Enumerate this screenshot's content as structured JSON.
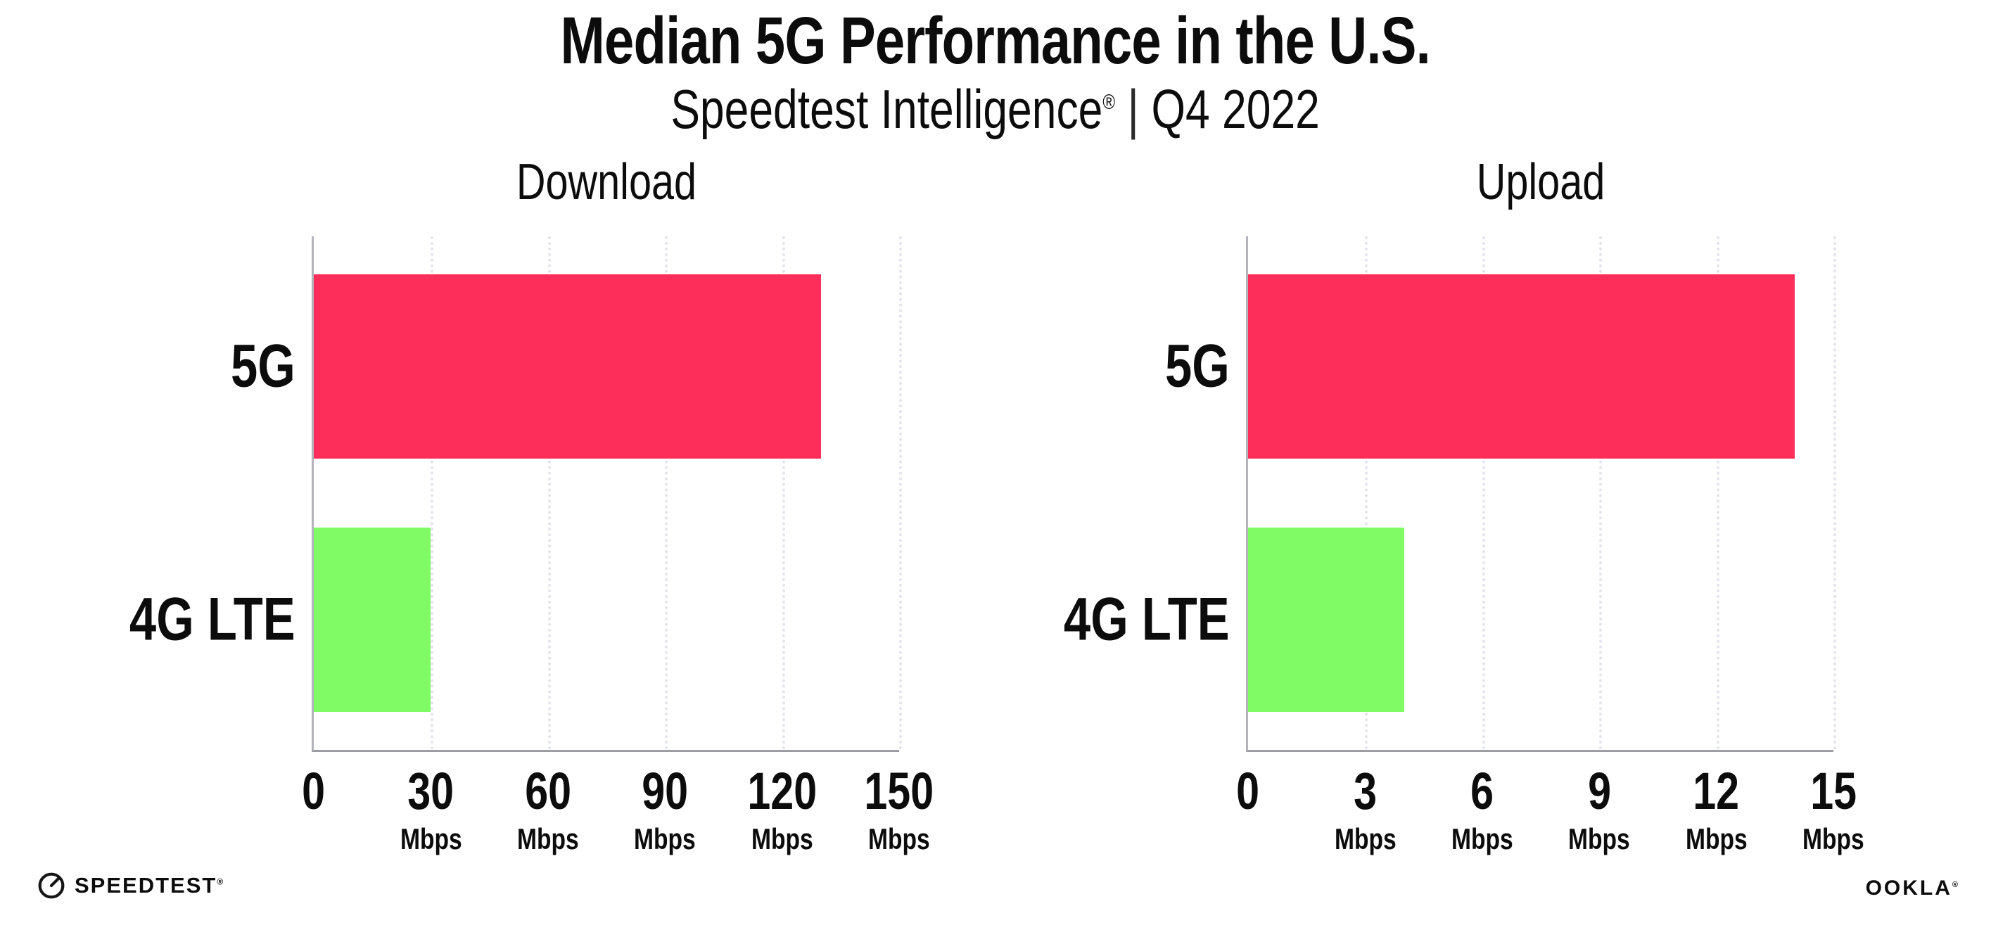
{
  "header": {
    "title": "Median 5G Performance in the U.S.",
    "subtitle_brand": "Speedtest Intelligence",
    "subtitle_reg": "®",
    "subtitle_sep": "|",
    "subtitle_period": "Q4 2022"
  },
  "colors": {
    "bar_5g": "#fd2e59",
    "bar_4g_lte": "#80fb66",
    "gridline": "#e3e3ed",
    "axis": "#a8a8b1",
    "text": "#0c0c0c"
  },
  "chart_data": [
    {
      "type": "bar",
      "orientation": "horizontal",
      "title": "Download",
      "categories": [
        "5G",
        "4G LTE"
      ],
      "values": [
        130,
        30
      ],
      "unit": "Mbps",
      "xlim": [
        0,
        150
      ],
      "xticks": [
        0,
        30,
        60,
        90,
        120,
        150
      ],
      "grid": "vertical-dotted",
      "legend": "none"
    },
    {
      "type": "bar",
      "orientation": "horizontal",
      "title": "Upload",
      "categories": [
        "5G",
        "4G LTE"
      ],
      "values": [
        14,
        4
      ],
      "unit": "Mbps",
      "xlim": [
        0,
        15
      ],
      "xticks": [
        0,
        3,
        6,
        9,
        12,
        15
      ],
      "grid": "vertical-dotted",
      "legend": "none"
    }
  ],
  "footer": {
    "speedtest_label": "SPEEDTEST",
    "speedtest_reg": "®",
    "ookla_label": "OOKLA",
    "ookla_reg": "®"
  }
}
